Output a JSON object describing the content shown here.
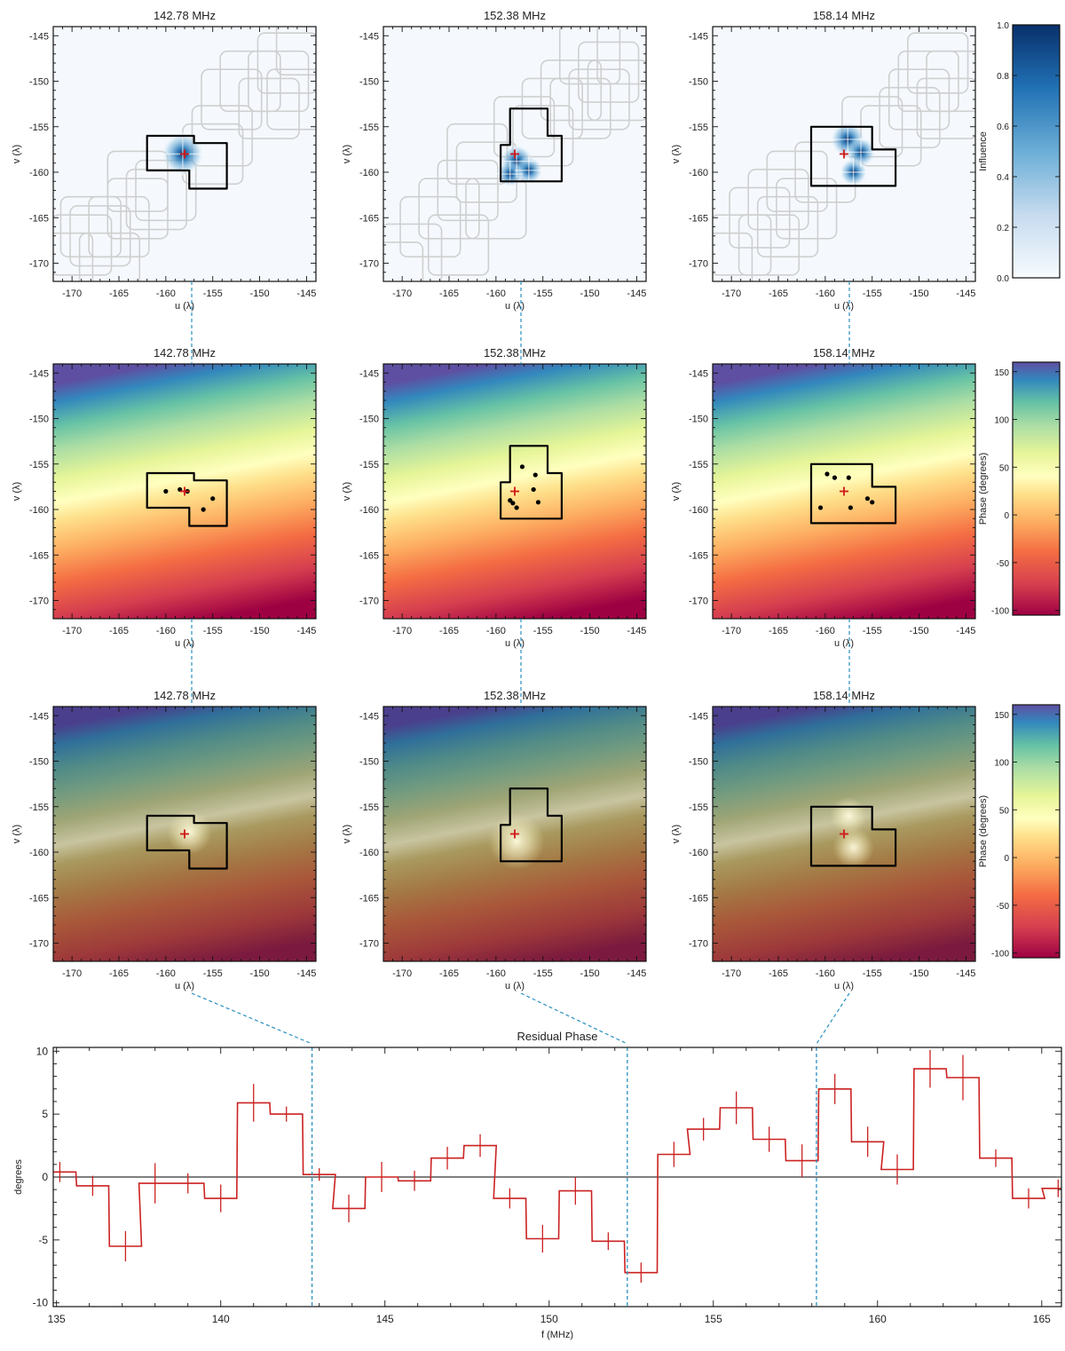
{
  "chart_data": [
    {
      "type": "heatmap",
      "panel_row": "influence",
      "titles": [
        "142.78 MHz",
        "152.38 MHz",
        "158.14 MHz"
      ],
      "xlabel": "u (λ)",
      "ylabel": "v (λ)",
      "xlim": [
        -172,
        -144
      ],
      "ylim": [
        -172,
        -144
      ],
      "xticks": [
        -170,
        -165,
        -160,
        -155,
        -150,
        -145
      ],
      "yticks": [
        -145,
        -150,
        -155,
        -160,
        -165,
        -170
      ],
      "center_marker": [
        -158,
        -158
      ],
      "colorbar": {
        "label": "Influence",
        "range": [
          0.0,
          1.0
        ],
        "ticks": [
          "1.0",
          "0.8",
          "0.6",
          "0.4",
          "0.2",
          "0.0"
        ]
      }
    },
    {
      "type": "heatmap",
      "panel_row": "phase",
      "titles": [
        "142.78 MHz",
        "152.38 MHz",
        "158.14 MHz"
      ],
      "xlabel": "u (λ)",
      "ylabel": "v (λ)",
      "xlim": [
        -172,
        -144
      ],
      "ylim": [
        -172,
        -144
      ],
      "xticks": [
        -170,
        -165,
        -160,
        -155,
        -150,
        -145
      ],
      "yticks": [
        -145,
        -150,
        -155,
        -160,
        -165,
        -170
      ],
      "samples": [
        [
          [
            -160,
            -158
          ],
          [
            -158.5,
            -157.8
          ],
          [
            -157.7,
            -158
          ],
          [
            -155,
            -158.8
          ],
          [
            -156,
            -160
          ]
        ],
        [
          [
            -157.2,
            -155.3
          ],
          [
            -155.8,
            -156.2
          ],
          [
            -156,
            -157.8
          ],
          [
            -155.5,
            -159.2
          ],
          [
            -158.2,
            -159.3
          ],
          [
            -158.5,
            -159
          ],
          [
            -157.8,
            -159.8
          ]
        ],
        [
          [
            -159.8,
            -156.1
          ],
          [
            -159,
            -156.5
          ],
          [
            -157.5,
            -156.5
          ],
          [
            -155.5,
            -158.8
          ],
          [
            -155,
            -159.2
          ],
          [
            -157.3,
            -159.8
          ],
          [
            -160.5,
            -159.8
          ]
        ]
      ],
      "colorbar": {
        "label": "Phase (degrees)",
        "range": [
          -105,
          160
        ],
        "ticks": [
          "150",
          "100",
          "50",
          "0",
          "-50",
          "-100"
        ]
      }
    },
    {
      "type": "heatmap",
      "panel_row": "model",
      "titles": [
        "142.78 MHz",
        "152.38 MHz",
        "158.14 MHz"
      ],
      "xlabel": "u (λ)",
      "ylabel": "v (λ)",
      "xlim": [
        -172,
        -144
      ],
      "ylim": [
        -172,
        -144
      ],
      "xticks": [
        -170,
        -165,
        -160,
        -155,
        -150,
        -145
      ],
      "yticks": [
        -145,
        -150,
        -155,
        -160,
        -165,
        -170
      ],
      "colorbar": {
        "label": "Phase (degrees)",
        "range": [
          -105,
          160
        ],
        "ticks": [
          "150",
          "100",
          "50",
          "0",
          "-50",
          "-100"
        ]
      }
    },
    {
      "type": "line",
      "title": "Residual Phase",
      "xlabel": "f (MHz)",
      "ylabel": "degrees",
      "xlim": [
        134.9,
        165.6
      ],
      "ylim": [
        -10.3,
        10.3
      ],
      "xticks": [
        135,
        140,
        145,
        150,
        155,
        160,
        165
      ],
      "yticks": [
        10,
        5,
        0,
        -5,
        -10
      ],
      "step_width": 0.98,
      "x": [
        135.1,
        136.1,
        137.1,
        138.0,
        139.0,
        140.0,
        141.0,
        142.0,
        143.0,
        143.9,
        144.9,
        145.9,
        146.9,
        147.9,
        148.8,
        149.8,
        150.8,
        151.8,
        152.8,
        153.8,
        154.7,
        155.7,
        156.7,
        157.7,
        158.7,
        159.7,
        160.6,
        161.6,
        162.6,
        163.6,
        164.6,
        165.5
      ],
      "y": [
        0.4,
        -0.7,
        -5.5,
        -0.5,
        -0.5,
        -1.7,
        5.9,
        5.0,
        0.2,
        -2.5,
        0.0,
        -0.3,
        1.5,
        2.5,
        -1.7,
        -4.9,
        -1.1,
        -5.1,
        -7.6,
        1.8,
        3.8,
        5.5,
        3.0,
        1.3,
        7.0,
        2.8,
        0.6,
        8.6,
        7.9,
        1.5,
        -1.7,
        -0.9
      ],
      "y_error": [
        0.8,
        0.8,
        1.2,
        1.6,
        0.8,
        1.1,
        1.5,
        0.6,
        0.5,
        1.1,
        1.2,
        0.8,
        0.9,
        0.9,
        0.8,
        1.1,
        1.1,
        0.7,
        0.8,
        1.0,
        0.9,
        1.3,
        1.0,
        1.3,
        1.2,
        1.2,
        1.2,
        1.5,
        1.8,
        0.7,
        0.8,
        0.7
      ],
      "marked_frequencies": [
        142.78,
        152.38,
        158.14
      ],
      "line_color": "#cc2222",
      "guide_color": "#2a8fbf"
    }
  ]
}
